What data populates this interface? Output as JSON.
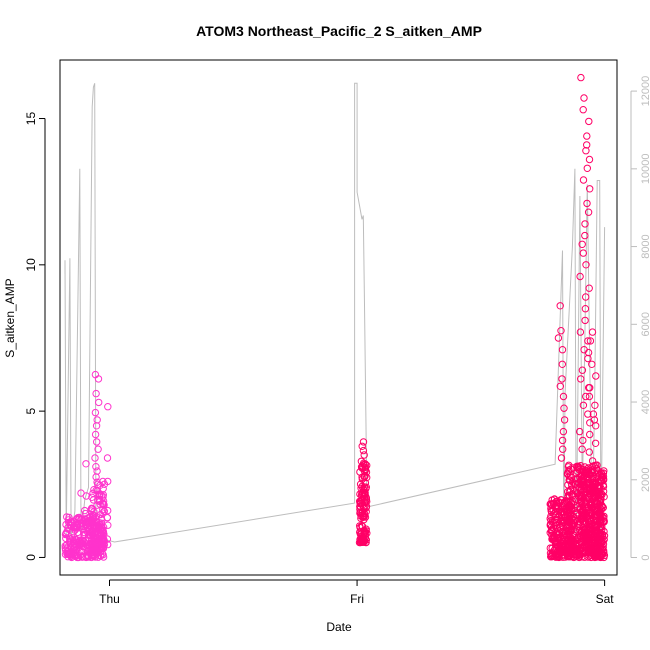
{
  "chart_data": {
    "type": "scatter",
    "title": "ATOM3 Northeast_Pacific_2 S_aitken_AMP",
    "xlabel": "Date",
    "ylabel": "S_aitken_AMP",
    "x_ticks": [
      "Thu",
      "Fri",
      "Sat"
    ],
    "y_ticks": [
      "0",
      "5",
      "10",
      "15"
    ],
    "y_range": [
      -0.6,
      17
    ],
    "secondary_y_ticks": [
      "0",
      "2000",
      "4000",
      "6000",
      "8000",
      "10000",
      "12000"
    ],
    "secondary_y_range": [
      -450,
      12800
    ],
    "x_range_days": [
      -0.2,
      2.05
    ],
    "grid": false,
    "colors": {
      "points_low": "#ff33cc",
      "points_high": "#ff0066",
      "secondary_line": "#bdbdbd",
      "axis": "#000000",
      "secondary_axis": "#bdbdbd"
    },
    "secondary_series": {
      "name": "",
      "type": "line",
      "points": [
        [
          -0.18,
          7300
        ],
        [
          -0.18,
          7650
        ],
        [
          -0.175,
          600
        ],
        [
          -0.16,
          7700
        ],
        [
          -0.155,
          500
        ],
        [
          -0.14,
          1200
        ],
        [
          -0.12,
          10000
        ],
        [
          -0.115,
          500
        ],
        [
          -0.1,
          1500
        ],
        [
          -0.085,
          1800
        ],
        [
          -0.07,
          11600
        ],
        [
          -0.065,
          12100
        ],
        [
          -0.06,
          12200
        ],
        [
          -0.055,
          800
        ],
        [
          -0.04,
          500
        ],
        [
          0.02,
          400
        ],
        [
          0.99,
          1400
        ],
        [
          0.99,
          12200
        ],
        [
          1.0,
          12200
        ],
        [
          1.0,
          9400
        ],
        [
          1.02,
          8700
        ],
        [
          1.025,
          8800
        ],
        [
          1.03,
          6500
        ],
        [
          1.04,
          1300
        ],
        [
          1.8,
          2400
        ],
        [
          1.83,
          7900
        ],
        [
          1.835,
          300
        ],
        [
          1.84,
          4200
        ],
        [
          1.87,
          8000
        ],
        [
          1.88,
          10000
        ],
        [
          1.885,
          200
        ],
        [
          1.89,
          3000
        ],
        [
          1.9,
          9300
        ],
        [
          1.91,
          1500
        ],
        [
          1.93,
          9600
        ],
        [
          1.95,
          400
        ],
        [
          1.96,
          4200
        ],
        [
          1.97,
          9700
        ],
        [
          1.98,
          9700
        ],
        [
          1.985,
          500
        ],
        [
          2.0,
          8500
        ]
      ]
    },
    "primary_series": {
      "name": "",
      "clusters": [
        {
          "x_start": -0.18,
          "x_end": -0.02,
          "y_min": 0.0,
          "y_max": 1.4,
          "count": 260,
          "spikes": [
            3.2,
            2.2,
            2.1,
            1.6,
            1.5,
            1.3
          ]
        },
        {
          "x_start": -0.08,
          "x_end": -0.02,
          "y_min": 0.3,
          "y_max": 2.6,
          "count": 90,
          "spikes": [
            6.25,
            6.1,
            5.6,
            5.3,
            4.95,
            4.7,
            4.5,
            4.2,
            3.95,
            3.7,
            3.4,
            3.1,
            2.95,
            2.75
          ]
        },
        {
          "x_start": -0.01,
          "x_end": -0.005,
          "y_min": 0.2,
          "y_max": 2.5,
          "count": 6,
          "spikes": [
            5.15,
            3.4,
            2.6
          ]
        },
        {
          "x_start": 1.01,
          "x_end": 1.04,
          "y_min": 0.5,
          "y_max": 3.3,
          "count": 120,
          "spikes": [
            3.95,
            3.8,
            3.65,
            3.5
          ]
        },
        {
          "x_start": 1.78,
          "x_end": 1.87,
          "y_min": 0.0,
          "y_max": 2.0,
          "count": 230,
          "spikes": [
            8.6,
            7.75,
            7.5,
            7.1,
            6.6,
            6.1,
            5.85,
            5.5,
            5.1,
            4.7,
            4.3,
            4.0,
            3.7,
            3.4
          ]
        },
        {
          "x_start": 1.85,
          "x_end": 1.99,
          "y_min": 0.0,
          "y_max": 3.2,
          "count": 420,
          "spikes": [
            16.4,
            15.7,
            15.3,
            14.9,
            14.4,
            14.1,
            13.9,
            13.6,
            13.3,
            12.9,
            12.6,
            12.1,
            11.8,
            11.4,
            11.0,
            10.7,
            10.4,
            10.0,
            9.6,
            9.2,
            8.9,
            8.5,
            8.1,
            7.7,
            7.4,
            7.1,
            6.8,
            6.4,
            6.1,
            5.8,
            5.5,
            5.2,
            4.9,
            4.6,
            4.3,
            4.0,
            3.7
          ]
        },
        {
          "x_start": 1.9,
          "x_end": 2.0,
          "y_min": 0.0,
          "y_max": 3.0,
          "count": 200,
          "spikes": [
            7.7,
            7.4,
            7.0,
            6.6,
            6.2,
            5.8,
            5.5,
            5.2,
            4.9,
            4.7,
            4.5,
            4.2,
            3.9,
            3.6,
            3.3
          ]
        }
      ]
    }
  }
}
